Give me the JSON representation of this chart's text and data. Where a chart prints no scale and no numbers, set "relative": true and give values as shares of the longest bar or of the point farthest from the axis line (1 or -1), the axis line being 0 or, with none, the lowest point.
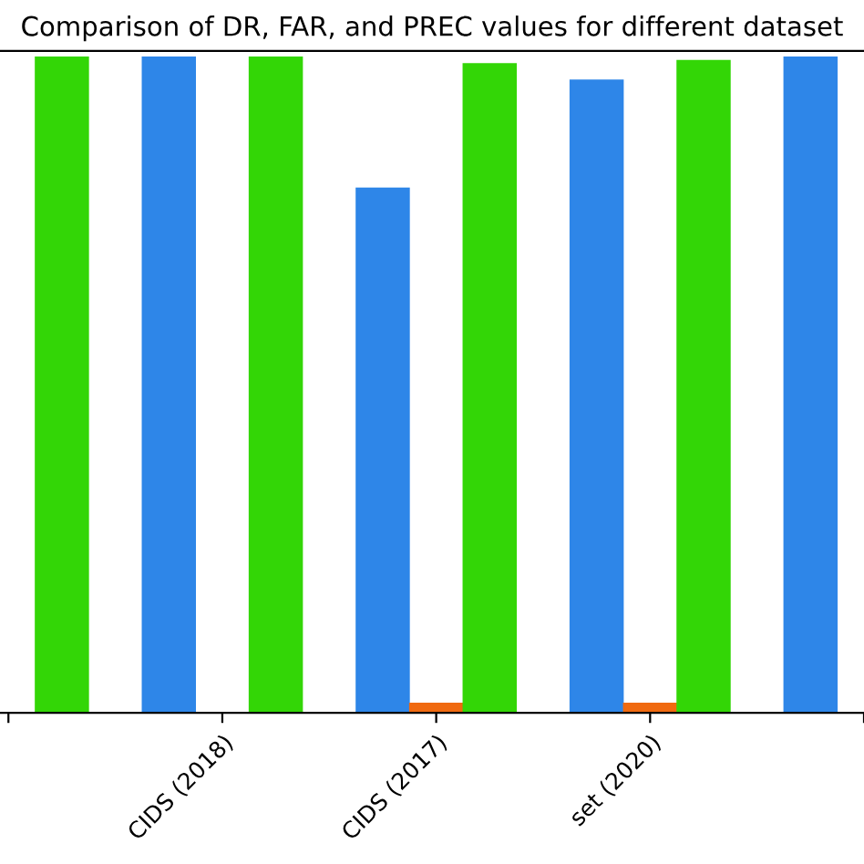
{
  "chart_data": {
    "type": "bar",
    "title": "Comparison of DR, FAR, and PREC values for different dataset",
    "relative": true,
    "categories": [
      null,
      "CIDS (2018)",
      "CIDS (2017)",
      "set (2020)",
      null
    ],
    "series": [
      {
        "color": "#2e86e8",
        "values": [
          null,
          1.0,
          0.8,
          0.965,
          1.0
        ]
      },
      {
        "color": "#f06a10",
        "values": [
          null,
          0.0,
          0.014,
          0.014,
          null
        ]
      },
      {
        "color": "#33d606",
        "values": [
          1.0,
          1.0,
          0.99,
          0.995,
          null
        ]
      }
    ]
  }
}
